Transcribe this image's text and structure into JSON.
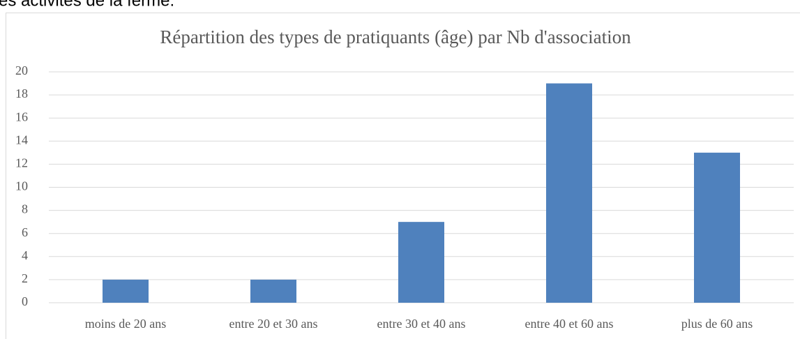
{
  "document": {
    "text": "es activités de la ferme."
  },
  "chart_data": {
    "type": "bar",
    "title": "Répartition des types de pratiquants (âge) par Nb d'association",
    "categories": [
      "moins de 20 ans",
      "entre 20 et 30 ans",
      "entre 30 et 40 ans",
      "entre 40 et 60 ans",
      "plus de 60 ans"
    ],
    "values": [
      2,
      2,
      7,
      19,
      13
    ],
    "color": "#4f81bd",
    "ylim": [
      0,
      20
    ],
    "yticks": [
      0,
      2,
      4,
      6,
      8,
      10,
      12,
      14,
      16,
      18,
      20
    ],
    "grid": true
  }
}
